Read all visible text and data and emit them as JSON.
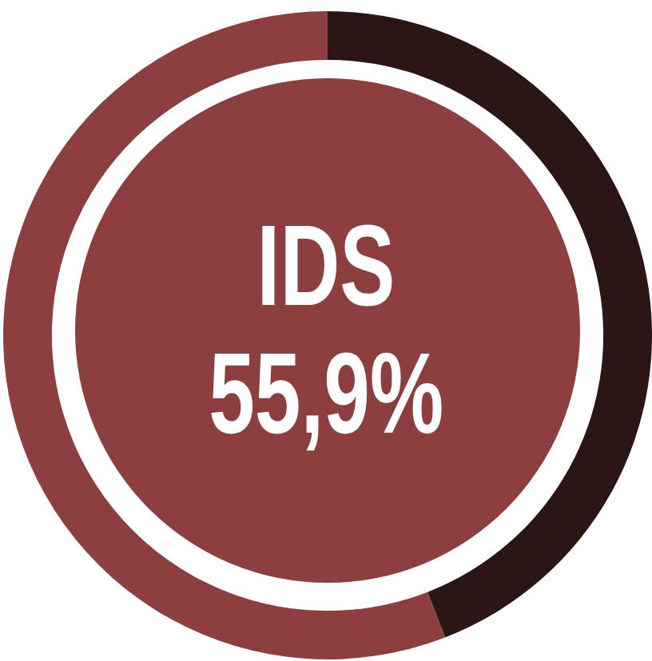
{
  "chart_data": {
    "type": "donut",
    "categories": [
      null,
      "IDS"
    ],
    "values": [
      44.1,
      55.9
    ],
    "colors": [
      "#2b1515",
      "#8d3f3f"
    ],
    "value_labels": [
      null,
      "55,9%"
    ],
    "legend": false
  }
}
